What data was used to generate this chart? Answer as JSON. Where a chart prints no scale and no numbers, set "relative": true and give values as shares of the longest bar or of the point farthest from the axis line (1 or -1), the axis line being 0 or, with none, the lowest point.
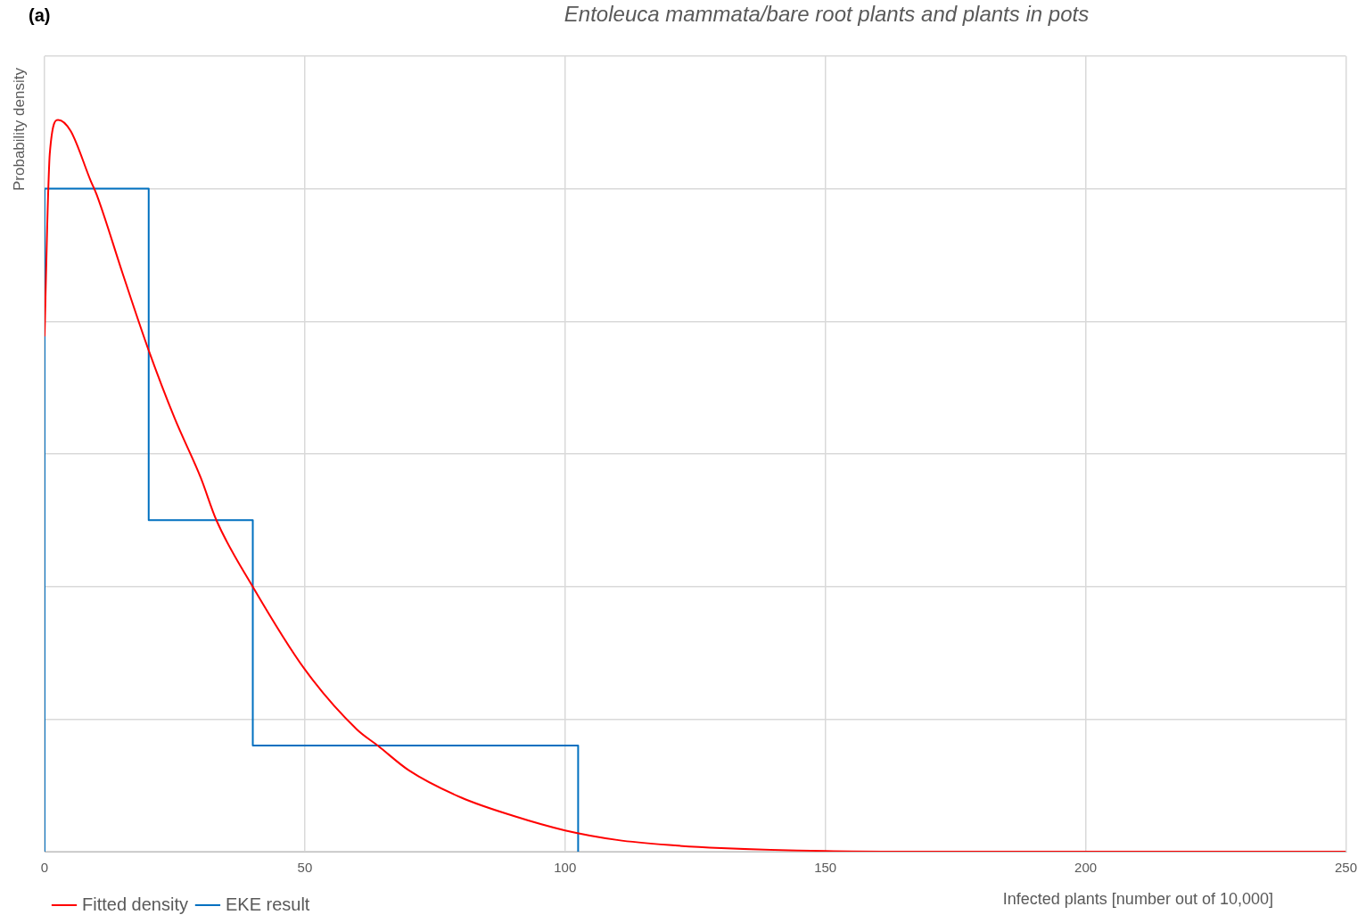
{
  "chart_data": {
    "type": "line",
    "title": "Entoleuca mammata/bare root plants and plants in pots",
    "xlabel": "Infected plants [number out of 10,000]",
    "ylabel": "Probability density",
    "annotations": [
      "(a)"
    ],
    "relative": true,
    "xlim": [
      0,
      250
    ],
    "xticks": [
      0,
      50,
      100,
      150,
      200,
      250
    ],
    "grid": true,
    "legend": "bottom left",
    "marker": "none",
    "series": [
      {
        "name": "EKE result",
        "color": "#0070c0",
        "type": "step",
        "x": [
          0,
          0,
          20,
          40,
          102.5
        ],
        "values": [
          0,
          0.906,
          0.453,
          0.145,
          0
        ]
      },
      {
        "name": "Fitted density",
        "color": "#ff0000",
        "x": [
          0,
          0.5,
          1,
          2.6,
          5,
          8.9,
          10,
          15,
          20,
          25,
          30,
          33,
          40,
          50,
          60,
          64,
          70,
          80,
          90,
          100,
          110,
          120,
          130,
          150,
          175,
          250
        ],
        "values": [
          0.704,
          0.854,
          0.954,
          1,
          0.985,
          0.916,
          0.898,
          0.79,
          0.685,
          0.592,
          0.511,
          0.453,
          0.362,
          0.249,
          0.167,
          0.145,
          0.111,
          0.074,
          0.049,
          0.029,
          0.016,
          0.009,
          0.005,
          0.001,
          0,
          0
        ]
      }
    ]
  }
}
